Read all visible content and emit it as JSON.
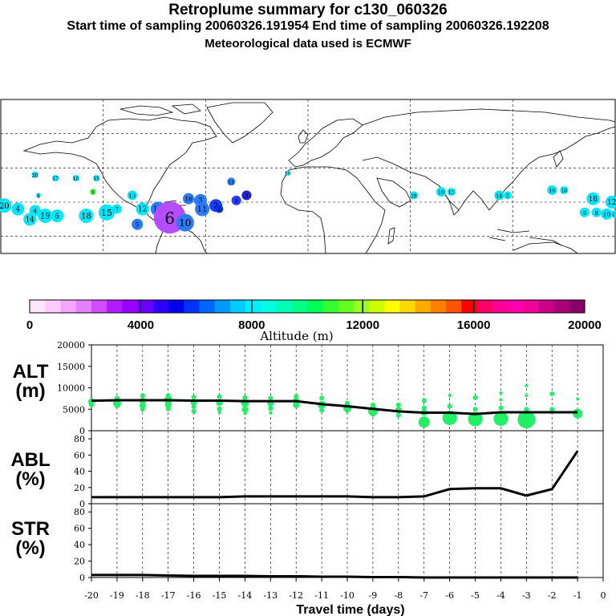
{
  "header": {
    "title": "Retroplume summary for c130_060326",
    "sampling_line": "Start time of sampling 20060326.191954     End time of sampling 20060326.192208",
    "met_line": "Meteorological data used is ECMWF"
  },
  "colorbar": {
    "label": "Altitude (m)",
    "ticks": [
      "0",
      "4000",
      "8000",
      "12000",
      "16000",
      "20000"
    ],
    "colors": [
      "#ffe6ff",
      "#ffccff",
      "#f5a6ff",
      "#e680ff",
      "#d24dff",
      "#b31aff",
      "#9900ff",
      "#6a00ff",
      "#2e00ff",
      "#0000ee",
      "#0033ff",
      "#0066ff",
      "#0099ff",
      "#00ccff",
      "#00eeff",
      "#00ffe0",
      "#00ffb4",
      "#00ff88",
      "#00ff55",
      "#33ff33",
      "#66ff22",
      "#99ff22",
      "#ccff00",
      "#ffff00",
      "#ffd800",
      "#ffaa00",
      "#ff8000",
      "#ff5500",
      "#ff0000",
      "#ff0066",
      "#ff0099",
      "#ff00aa",
      "#ee0099",
      "#cc0088",
      "#aa0077",
      "#880066"
    ]
  },
  "map": {
    "plume_points": [
      {
        "lon": -178,
        "lat": 18,
        "r": 9,
        "color": "#00e6ff",
        "label": "20"
      },
      {
        "lon": -170,
        "lat": 16,
        "r": 8,
        "color": "#00e6ff",
        "label": "4"
      },
      {
        "lon": -160,
        "lat": 15,
        "r": 7,
        "color": "#00e6ff",
        "label": "4"
      },
      {
        "lon": -163,
        "lat": 10,
        "r": 8,
        "color": "#00e6ff",
        "label": "14"
      },
      {
        "lon": -154,
        "lat": 12,
        "r": 9,
        "color": "#00e6ff",
        "label": "19"
      },
      {
        "lon": -147,
        "lat": 12,
        "r": 8,
        "color": "#00e6ff",
        "label": "6"
      },
      {
        "lon": -130,
        "lat": 12,
        "r": 9,
        "color": "#00e6ff",
        "label": "18"
      },
      {
        "lon": -118,
        "lat": 14,
        "r": 10,
        "color": "#00e6ff",
        "label": "15"
      },
      {
        "lon": -112,
        "lat": 16,
        "r": 6,
        "color": "#00e6ff",
        "label": "7"
      },
      {
        "lon": -160,
        "lat": 36,
        "r": 4,
        "color": "#00e6ff",
        "label": "20"
      },
      {
        "lon": -148,
        "lat": 34,
        "r": 4,
        "color": "#00e6ff",
        "label": "17"
      },
      {
        "lon": -136,
        "lat": 34,
        "r": 4,
        "color": "#00e6ff",
        "label": "16"
      },
      {
        "lon": -124,
        "lat": 34,
        "r": 4,
        "color": "#00e6ff",
        "label": "15"
      },
      {
        "lon": -126,
        "lat": 26,
        "r": 4,
        "color": "#55ff55",
        "label": "9"
      },
      {
        "lon": -158,
        "lat": 24,
        "r": 3,
        "color": "#00e6ff",
        "label": "4"
      },
      {
        "lon": -103,
        "lat": 24,
        "r": 6,
        "color": "#00e6ff",
        "label": "13"
      },
      {
        "lon": -97,
        "lat": 16,
        "r": 8,
        "color": "#00e6ff",
        "label": "12"
      },
      {
        "lon": -100,
        "lat": 7,
        "r": 7,
        "color": "#2a7bff",
        "label": "5"
      },
      {
        "lon": -88,
        "lat": 16,
        "r": 9,
        "color": "#2a7bff",
        "label": "14"
      },
      {
        "lon": -81,
        "lat": 11,
        "r": 20,
        "color": "#b44dff",
        "label": "6"
      },
      {
        "lon": -72,
        "lat": 8,
        "r": 11,
        "color": "#2a7bff",
        "label": "10"
      },
      {
        "lon": -70,
        "lat": 22,
        "r": 7,
        "color": "#2a7bff",
        "label": "16"
      },
      {
        "lon": -63,
        "lat": 21,
        "r": 8,
        "color": "#2a7bff",
        "label": "3"
      },
      {
        "lon": -62,
        "lat": 16,
        "r": 9,
        "color": "#2a7bff",
        "label": "11"
      },
      {
        "lon": -54,
        "lat": 18,
        "r": 8,
        "color": "#1a3aff",
        "label": "2"
      },
      {
        "lon": -52,
        "lat": 16,
        "r": 5,
        "color": "#0033ee",
        "label": "5"
      },
      {
        "lon": -42,
        "lat": 21,
        "r": 6,
        "color": "#2a3aff",
        "label": "4"
      },
      {
        "lon": -45,
        "lat": 32,
        "r": 5,
        "color": "#2a7bff",
        "label": "11"
      },
      {
        "lon": -36,
        "lat": 24,
        "r": 6,
        "color": "#2020d0",
        "label": "3"
      },
      {
        "lon": -12,
        "lat": 37,
        "r": 3,
        "color": "#00e6ff",
        "label": "19"
      },
      {
        "lon": 62,
        "lat": 24,
        "r": 5,
        "color": "#00e6ff",
        "label": "18"
      },
      {
        "lon": 78,
        "lat": 26,
        "r": 6,
        "color": "#00e6ff",
        "label": "19"
      },
      {
        "lon": 84,
        "lat": 26,
        "r": 5,
        "color": "#00e6ff",
        "label": "15"
      },
      {
        "lon": 112,
        "lat": 24,
        "r": 6,
        "color": "#00e6ff",
        "label": "14"
      },
      {
        "lon": 117,
        "lat": 24,
        "r": 5,
        "color": "#00e6ff",
        "label": "5"
      },
      {
        "lon": 143,
        "lat": 27,
        "r": 6,
        "color": "#00e6ff",
        "label": "19"
      },
      {
        "lon": 150,
        "lat": 27,
        "r": 5,
        "color": "#00e6ff",
        "label": "16"
      },
      {
        "lon": 167,
        "lat": 22,
        "r": 8,
        "color": "#00e6ff",
        "label": "18"
      },
      {
        "lon": 178,
        "lat": 20,
        "r": 8,
        "color": "#00e6ff",
        "label": "12"
      },
      {
        "lon": 162,
        "lat": 14,
        "r": 6,
        "color": "#00e6ff",
        "label": "9"
      },
      {
        "lon": 169,
        "lat": 14,
        "r": 6,
        "color": "#00e6ff",
        "label": "8"
      },
      {
        "lon": 175,
        "lat": 13,
        "r": 7,
        "color": "#00e6ff",
        "label": "10"
      },
      {
        "lon": 180,
        "lat": 13,
        "r": 5,
        "color": "#00e6ff",
        "label": "11"
      }
    ]
  },
  "chart_data": [
    {
      "type": "line",
      "panel": "ALT",
      "ylabel": "ALT\n(m)",
      "xlabel": "Travel time (days)",
      "xlim": [
        -20,
        0
      ],
      "ylim": [
        0,
        20000
      ],
      "x_ticks": [
        "-20",
        "-19",
        "-18",
        "-17",
        "-16",
        "-15",
        "-14",
        "-13",
        "-12",
        "-11",
        "-10",
        "-9",
        "-8",
        "-7",
        "-6",
        "-5",
        "-4",
        "-3",
        "-2",
        "-1",
        "0"
      ],
      "y_ticks": [
        "0",
        "5000",
        "10000",
        "15000",
        "20000"
      ],
      "x": [
        -20,
        -19,
        -18,
        -17,
        -16,
        -15,
        -14,
        -13,
        -12,
        -11,
        -10,
        -9,
        -8,
        -7,
        -6,
        -5,
        -4,
        -3,
        -2,
        -1
      ],
      "mean_altitude": [
        7000,
        7100,
        7100,
        7100,
        7000,
        7000,
        6900,
        6900,
        6900,
        6200,
        5700,
        5100,
        4500,
        4200,
        4200,
        3900,
        4300,
        4300,
        4300,
        4300
      ],
      "scatter": [
        {
          "x": -20,
          "y": 6800,
          "s": 4
        },
        {
          "x": -20,
          "y": 6000,
          "s": 3
        },
        {
          "x": -19,
          "y": 7600,
          "s": 3
        },
        {
          "x": -19,
          "y": 6400,
          "s": 5
        },
        {
          "x": -19,
          "y": 5800,
          "s": 3
        },
        {
          "x": -18,
          "y": 8200,
          "s": 3
        },
        {
          "x": -18,
          "y": 7000,
          "s": 4
        },
        {
          "x": -18,
          "y": 5900,
          "s": 4
        },
        {
          "x": -18,
          "y": 5000,
          "s": 3
        },
        {
          "x": -17,
          "y": 8200,
          "s": 3
        },
        {
          "x": -17,
          "y": 7200,
          "s": 5
        },
        {
          "x": -17,
          "y": 6000,
          "s": 4
        },
        {
          "x": -17,
          "y": 5100,
          "s": 3
        },
        {
          "x": -16,
          "y": 7800,
          "s": 3
        },
        {
          "x": -16,
          "y": 6600,
          "s": 4
        },
        {
          "x": -16,
          "y": 5600,
          "s": 3
        },
        {
          "x": -16,
          "y": 4500,
          "s": 3
        },
        {
          "x": -15,
          "y": 7900,
          "s": 3
        },
        {
          "x": -15,
          "y": 6500,
          "s": 4
        },
        {
          "x": -15,
          "y": 5100,
          "s": 3
        },
        {
          "x": -15,
          "y": 4300,
          "s": 2
        },
        {
          "x": -14,
          "y": 7700,
          "s": 3
        },
        {
          "x": -14,
          "y": 6500,
          "s": 5
        },
        {
          "x": -14,
          "y": 5000,
          "s": 4
        },
        {
          "x": -14,
          "y": 4000,
          "s": 2
        },
        {
          "x": -13,
          "y": 7600,
          "s": 3
        },
        {
          "x": -13,
          "y": 6400,
          "s": 4
        },
        {
          "x": -13,
          "y": 5200,
          "s": 3
        },
        {
          "x": -13,
          "y": 4200,
          "s": 2
        },
        {
          "x": -12,
          "y": 8000,
          "s": 3
        },
        {
          "x": -12,
          "y": 7000,
          "s": 4
        },
        {
          "x": -12,
          "y": 6000,
          "s": 4
        },
        {
          "x": -11,
          "y": 7600,
          "s": 3
        },
        {
          "x": -11,
          "y": 6000,
          "s": 5
        },
        {
          "x": -11,
          "y": 4800,
          "s": 3
        },
        {
          "x": -10,
          "y": 6400,
          "s": 3
        },
        {
          "x": -10,
          "y": 5300,
          "s": 5
        },
        {
          "x": -10,
          "y": 4700,
          "s": 3
        },
        {
          "x": -9,
          "y": 6000,
          "s": 3
        },
        {
          "x": -9,
          "y": 4600,
          "s": 6
        },
        {
          "x": -9,
          "y": 3800,
          "s": 3
        },
        {
          "x": -8,
          "y": 6000,
          "s": 3
        },
        {
          "x": -8,
          "y": 4800,
          "s": 4
        },
        {
          "x": -8,
          "y": 3600,
          "s": 3
        },
        {
          "x": -7,
          "y": 7000,
          "s": 3
        },
        {
          "x": -7,
          "y": 5300,
          "s": 3
        },
        {
          "x": -7,
          "y": 4200,
          "s": 4
        },
        {
          "x": -7,
          "y": 2000,
          "s": 7
        },
        {
          "x": -6,
          "y": 8200,
          "s": 2
        },
        {
          "x": -6,
          "y": 5700,
          "s": 3
        },
        {
          "x": -6,
          "y": 3000,
          "s": 9
        },
        {
          "x": -5,
          "y": 7700,
          "s": 3
        },
        {
          "x": -5,
          "y": 5000,
          "s": 3
        },
        {
          "x": -5,
          "y": 2700,
          "s": 9
        },
        {
          "x": -4,
          "y": 8800,
          "s": 2
        },
        {
          "x": -4,
          "y": 7200,
          "s": 2
        },
        {
          "x": -4,
          "y": 5300,
          "s": 3
        },
        {
          "x": -4,
          "y": 2800,
          "s": 9
        },
        {
          "x": -3,
          "y": 10500,
          "s": 2
        },
        {
          "x": -3,
          "y": 8200,
          "s": 2
        },
        {
          "x": -3,
          "y": 5000,
          "s": 3
        },
        {
          "x": -3,
          "y": 2600,
          "s": 11
        },
        {
          "x": -2,
          "y": 8600,
          "s": 3
        },
        {
          "x": -2,
          "y": 5000,
          "s": 3
        },
        {
          "x": -1,
          "y": 7400,
          "s": 2
        },
        {
          "x": -1,
          "y": 4000,
          "s": 6
        }
      ]
    },
    {
      "type": "line",
      "panel": "ABL",
      "ylabel": "ABL\n(%)",
      "xlim": [
        -20,
        0
      ],
      "ylim": [
        0,
        90
      ],
      "y_ticks": [
        "0",
        "20",
        "40",
        "60",
        "80"
      ],
      "x": [
        -20,
        -19,
        -18,
        -17,
        -16,
        -15,
        -14,
        -13,
        -12,
        -11,
        -10,
        -9,
        -8,
        -7,
        -6,
        -5,
        -4,
        -3,
        -2,
        -1
      ],
      "values": [
        8,
        8,
        8,
        8,
        8,
        8,
        9,
        9,
        9,
        9,
        9,
        8,
        8,
        9,
        18,
        19,
        19,
        10,
        18,
        65
      ]
    },
    {
      "type": "line",
      "panel": "STR",
      "ylabel": "STR\n(%)",
      "xlim": [
        -20,
        0
      ],
      "ylim": [
        0,
        90
      ],
      "y_ticks": [
        "0",
        "20",
        "40",
        "60",
        "80"
      ],
      "x": [
        -20,
        -19,
        -18,
        -17,
        -16,
        -15,
        -14,
        -13,
        -12,
        -11,
        -10,
        -9,
        -8,
        -7,
        -6,
        -5,
        -4,
        -3,
        -2,
        -1
      ],
      "values": [
        3,
        3,
        3,
        2.5,
        2,
        2,
        2,
        1.5,
        1.5,
        1,
        1,
        0.5,
        0.5,
        0,
        0,
        0,
        0,
        0,
        0,
        0
      ]
    }
  ]
}
